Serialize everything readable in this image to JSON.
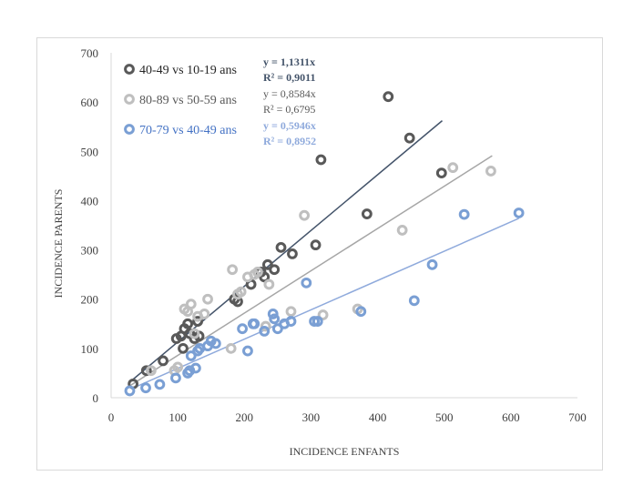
{
  "chart_data": {
    "type": "scatter",
    "xlabel": "INCIDENCE ENFANTS",
    "ylabel": "INCIDENCE PARENTS",
    "xlim": [
      0,
      700
    ],
    "ylim": [
      0,
      700
    ],
    "x_ticks": [
      "0",
      "100",
      "200",
      "300",
      "400",
      "500",
      "600",
      "700"
    ],
    "y_ticks": [
      "0",
      "100",
      "200",
      "300",
      "400",
      "500",
      "600",
      "700"
    ],
    "grid": false,
    "legend_position": "top-left",
    "series": [
      {
        "name": "40-49 vs 10-19 ans",
        "color": "#595959",
        "equation": "y = 1,1311x",
        "r2": "R² = 0,9011",
        "slope": 1.1311,
        "trend_x": [
          30,
          497
        ],
        "points": [
          [
            33,
            28
          ],
          [
            53,
            55
          ],
          [
            78,
            75
          ],
          [
            98,
            120
          ],
          [
            105,
            125
          ],
          [
            108,
            100
          ],
          [
            110,
            140
          ],
          [
            115,
            150
          ],
          [
            118,
            130
          ],
          [
            125,
            120
          ],
          [
            130,
            155
          ],
          [
            132,
            125
          ],
          [
            185,
            200
          ],
          [
            190,
            195
          ],
          [
            210,
            230
          ],
          [
            225,
            255
          ],
          [
            230,
            245
          ],
          [
            235,
            270
          ],
          [
            245,
            260
          ],
          [
            255,
            305
          ],
          [
            272,
            292
          ],
          [
            307,
            310
          ],
          [
            315,
            483
          ],
          [
            384,
            373
          ],
          [
            416,
            611
          ],
          [
            448,
            527
          ],
          [
            496,
            456
          ]
        ]
      },
      {
        "name": "80-89 vs 50-59 ans",
        "color": "#bfbfbf",
        "equation": "y = 0,8584x",
        "r2": "R² = 0,6795",
        "slope": 0.8584,
        "trend_x": [
          30,
          572
        ],
        "points": [
          [
            60,
            55
          ],
          [
            95,
            55
          ],
          [
            100,
            62
          ],
          [
            110,
            180
          ],
          [
            115,
            175
          ],
          [
            120,
            190
          ],
          [
            125,
            130
          ],
          [
            130,
            165
          ],
          [
            140,
            170
          ],
          [
            145,
            200
          ],
          [
            180,
            100
          ],
          [
            182,
            260
          ],
          [
            190,
            210
          ],
          [
            195,
            215
          ],
          [
            205,
            245
          ],
          [
            215,
            250
          ],
          [
            220,
            255
          ],
          [
            232,
            145
          ],
          [
            237,
            230
          ],
          [
            270,
            175
          ],
          [
            290,
            370
          ],
          [
            318,
            168
          ],
          [
            370,
            180
          ],
          [
            437,
            340
          ],
          [
            513,
            467
          ],
          [
            570,
            460
          ]
        ]
      },
      {
        "name": "70-79 vs 40-49 ans",
        "color": "#7a9fd4",
        "equation": "y = 0,5946x",
        "r2": "R² = 0,8952",
        "slope": 0.5946,
        "trend_x": [
          30,
          612
        ],
        "points": [
          [
            28,
            14
          ],
          [
            52,
            20
          ],
          [
            73,
            27
          ],
          [
            97,
            40
          ],
          [
            115,
            50
          ],
          [
            118,
            55
          ],
          [
            120,
            85
          ],
          [
            127,
            60
          ],
          [
            130,
            95
          ],
          [
            133,
            100
          ],
          [
            145,
            105
          ],
          [
            150,
            115
          ],
          [
            157,
            110
          ],
          [
            197,
            140
          ],
          [
            205,
            95
          ],
          [
            213,
            150
          ],
          [
            215,
            150
          ],
          [
            230,
            135
          ],
          [
            243,
            170
          ],
          [
            245,
            160
          ],
          [
            250,
            140
          ],
          [
            260,
            150
          ],
          [
            270,
            155
          ],
          [
            293,
            233
          ],
          [
            305,
            155
          ],
          [
            310,
            155
          ],
          [
            375,
            175
          ],
          [
            455,
            197
          ],
          [
            482,
            270
          ],
          [
            530,
            372
          ],
          [
            612,
            375
          ]
        ]
      }
    ]
  }
}
